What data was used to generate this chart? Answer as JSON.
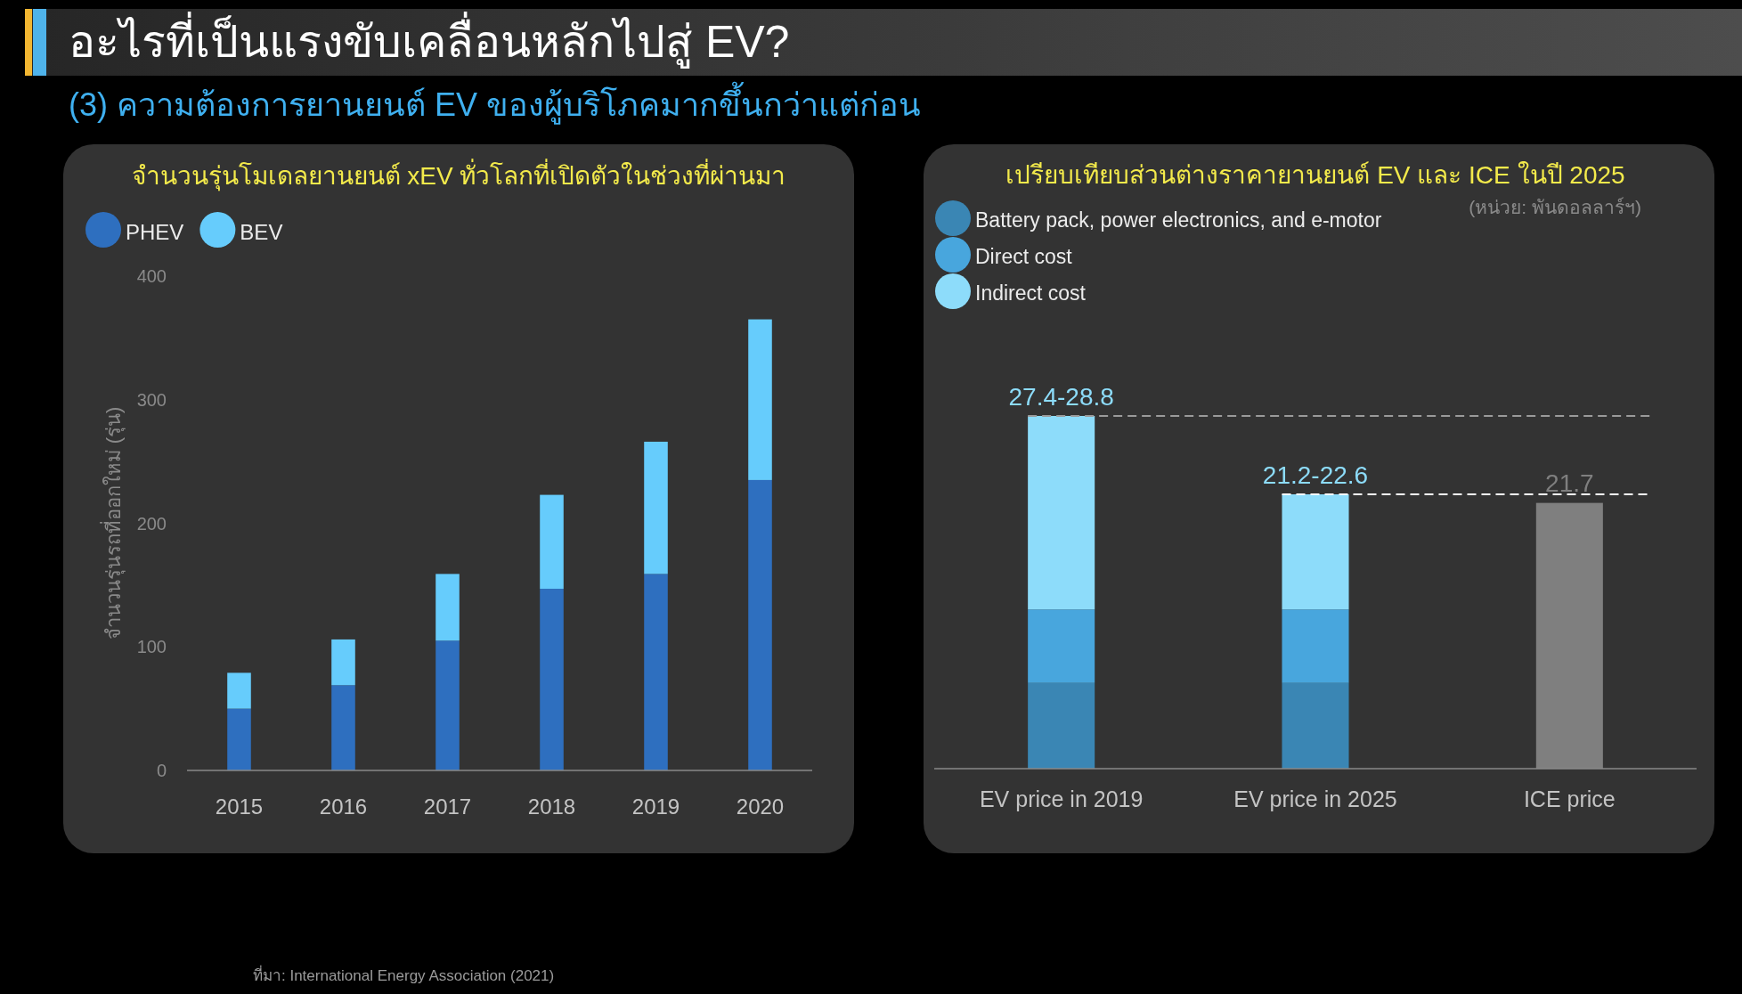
{
  "chart_data": [
    {
      "type": "bar",
      "title": "จำนวนรุ่นโมเดลยานยนต์ xEV ทั่วโลกที่เปิดตัวในช่วงที่ผ่านมา",
      "ylabel": "จำนวนรุ่นรถที่ออกใหม่ (รุ่น)",
      "categories": [
        "2015",
        "2016",
        "2017",
        "2018",
        "2019",
        "2020"
      ],
      "series": [
        {
          "name": "PHEV",
          "color": "#2e6fbf",
          "values": [
            50,
            69,
            105,
            147,
            159,
            235
          ]
        },
        {
          "name": "BEV",
          "color": "#66ccfc",
          "values": [
            29,
            37,
            54,
            76,
            107,
            130
          ]
        }
      ],
      "stacked": true,
      "ylim": [
        0,
        400
      ],
      "yticks": [
        0,
        100,
        200,
        300,
        400
      ],
      "legend": "top left",
      "annotations": [
        "อะไรที่เป็นแรงขับเคลื่อนหลักไปสู่ EV?",
        "(3) ความต้องการยานยนต์ EV ของผู้บริโภคมากขึ้นกว่าแต่ก่อน",
        "ที่มา: International Energy Association (2021)"
      ]
    },
    {
      "type": "bar",
      "title": "เปรียบเทียบส่วนต่างราคายานยนต์ EV และ ICE ในปี 2025",
      "subtitle": "(หน่วย: พันดอลลาร์ฯ)",
      "categories": [
        "EV price in 2019",
        "EV price in 2025",
        "ICE price"
      ],
      "series": [
        {
          "name": "Battery pack, power electronics, and e-motor",
          "color": "#3a86b4",
          "values": [
            7.0,
            7.0,
            null
          ]
        },
        {
          "name": "Direct cost",
          "color": "#48a6dd",
          "values": [
            6.0,
            6.0,
            null
          ]
        },
        {
          "name": "Indirect cost",
          "color": "#8ddcfa",
          "values": [
            15.8,
            9.4,
            null
          ],
          "value_labels": [
            "27.4-28.8",
            "21.2-22.6",
            null
          ]
        },
        {
          "color": "#7f7f7f",
          "values": [
            null,
            null,
            21.7
          ],
          "value_labels": [
            null,
            null,
            "21.7"
          ]
        }
      ],
      "stacked": true,
      "tick_labels": "x",
      "legend": "top left",
      "ref_lines": [
        {
          "axis": "y",
          "value": 28.8,
          "color": "#9a9a9a",
          "line_style": "dashed"
        },
        {
          "axis": "y",
          "value": 22.4,
          "color": "#ffffff",
          "line_style": "dashed"
        }
      ]
    }
  ]
}
